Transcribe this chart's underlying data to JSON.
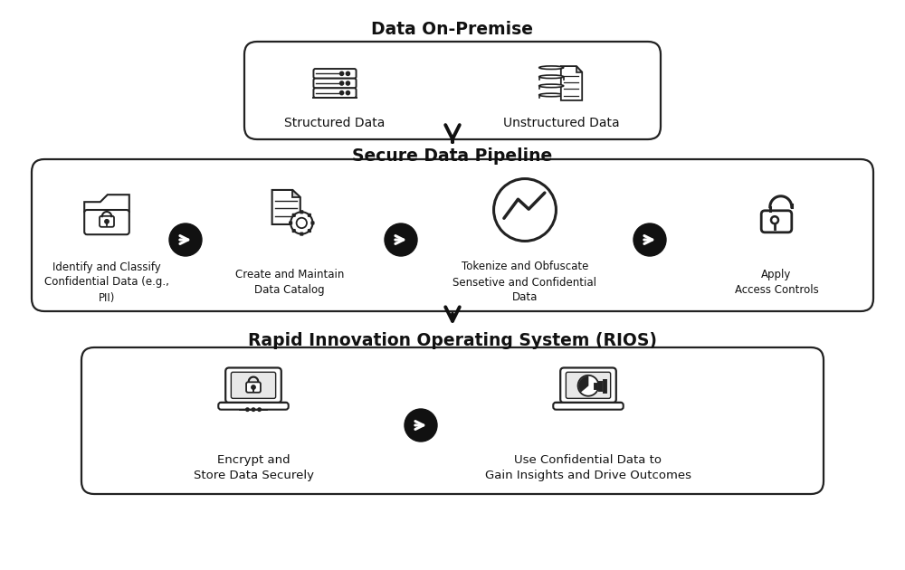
{
  "bg_color": "#ffffff",
  "title_color": "#111111",
  "box_edge_color": "#222222",
  "box_face_color": "#ffffff",
  "arrow_color": "#111111",
  "text_color": "#111111",
  "section1_title": "Data On-Premise",
  "section2_title": "Secure Data Pipeline",
  "section3_title": "Rapid Innovation Operating System (RIOS)",
  "section1_items": [
    "Structured Data",
    "Unstructured Data"
  ],
  "section2_items": [
    "Identify and Classify\nConfidential Data (e.g.,\nPII)",
    "Create and Maintain\nData Catalog",
    "Tokenize and Obfuscate\nSensetive and Confidential\nData",
    "Apply\nAccess Controls"
  ],
  "section3_items": [
    "Encrypt and\nStore Data Securely",
    "Use Confidential Data to\nGain Insights and Drive Outcomes"
  ],
  "figsize": [
    10.0,
    6.3
  ],
  "dpi": 100
}
